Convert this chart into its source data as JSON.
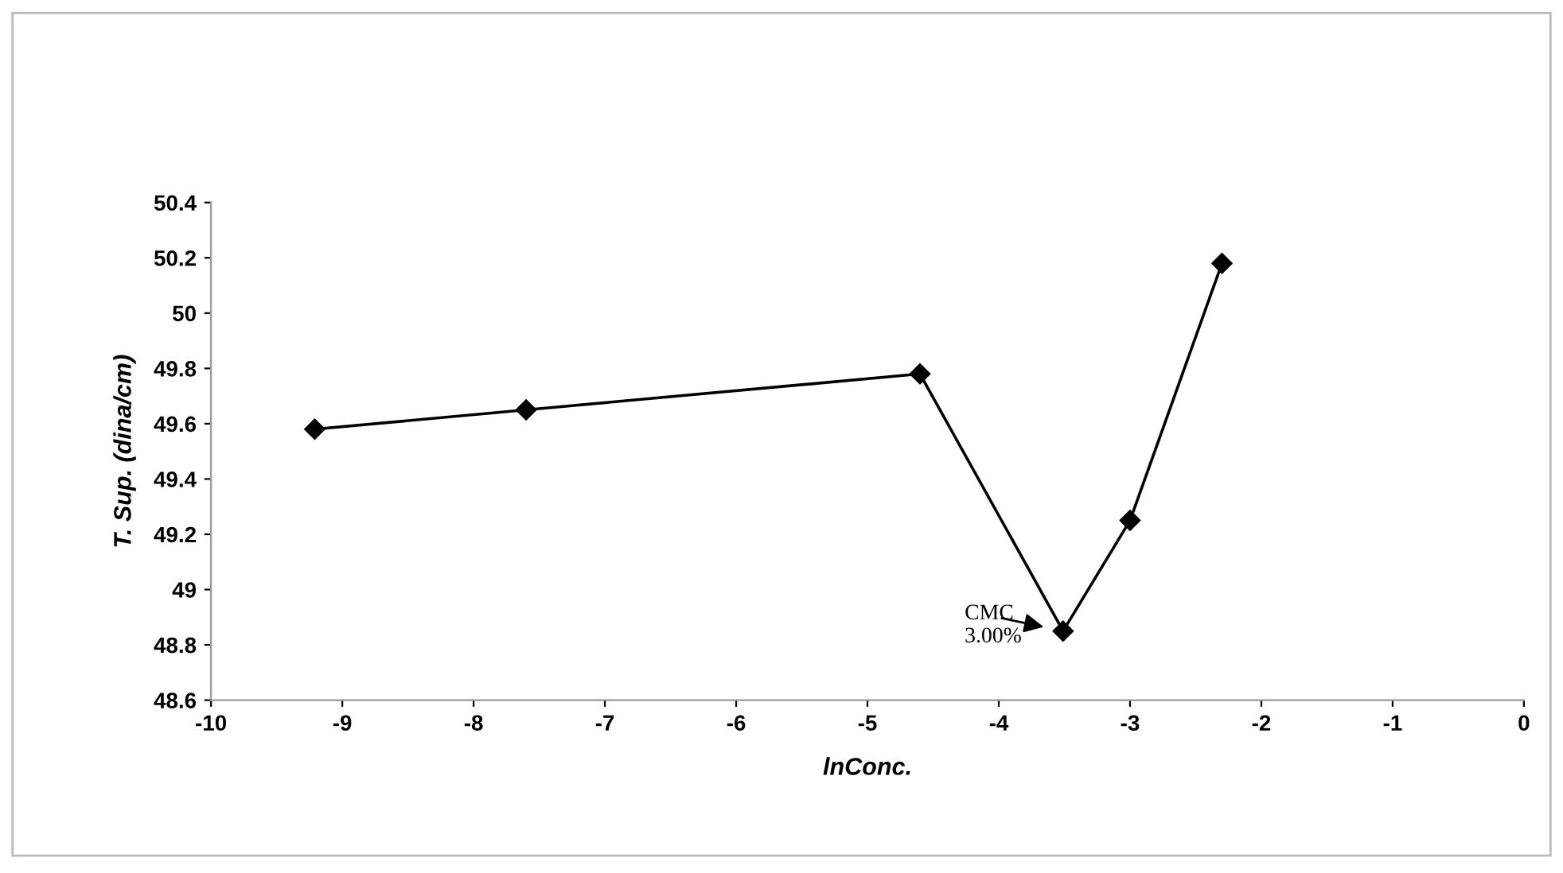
{
  "chart_data": {
    "type": "line",
    "xlabel": "lnConc.",
    "ylabel": "T. Sup. (dina/cm)",
    "x": [
      -9.21,
      -7.6,
      -4.6,
      -3.51,
      -3.0,
      -2.3
    ],
    "series": [
      {
        "color": "#000000",
        "values": [
          49.58,
          49.65,
          49.78,
          48.85,
          49.25,
          50.18
        ]
      }
    ],
    "marker": "diamond",
    "line_style": "solid",
    "xlim": [
      -10,
      0
    ],
    "xticks": [
      -10,
      -9,
      -8,
      -7,
      -6,
      -5,
      -4,
      -3,
      -2,
      -1,
      0
    ],
    "ylim": [
      48.6,
      50.4
    ],
    "yticks": [
      48.6,
      48.8,
      49,
      49.2,
      49.4,
      49.6,
      49.8,
      50,
      50.2,
      50.4
    ],
    "annotations": [
      {
        "text": "CMC\n3.00%",
        "x": -3.51,
        "y": 48.85
      }
    ],
    "grid": false,
    "legend": false
  }
}
